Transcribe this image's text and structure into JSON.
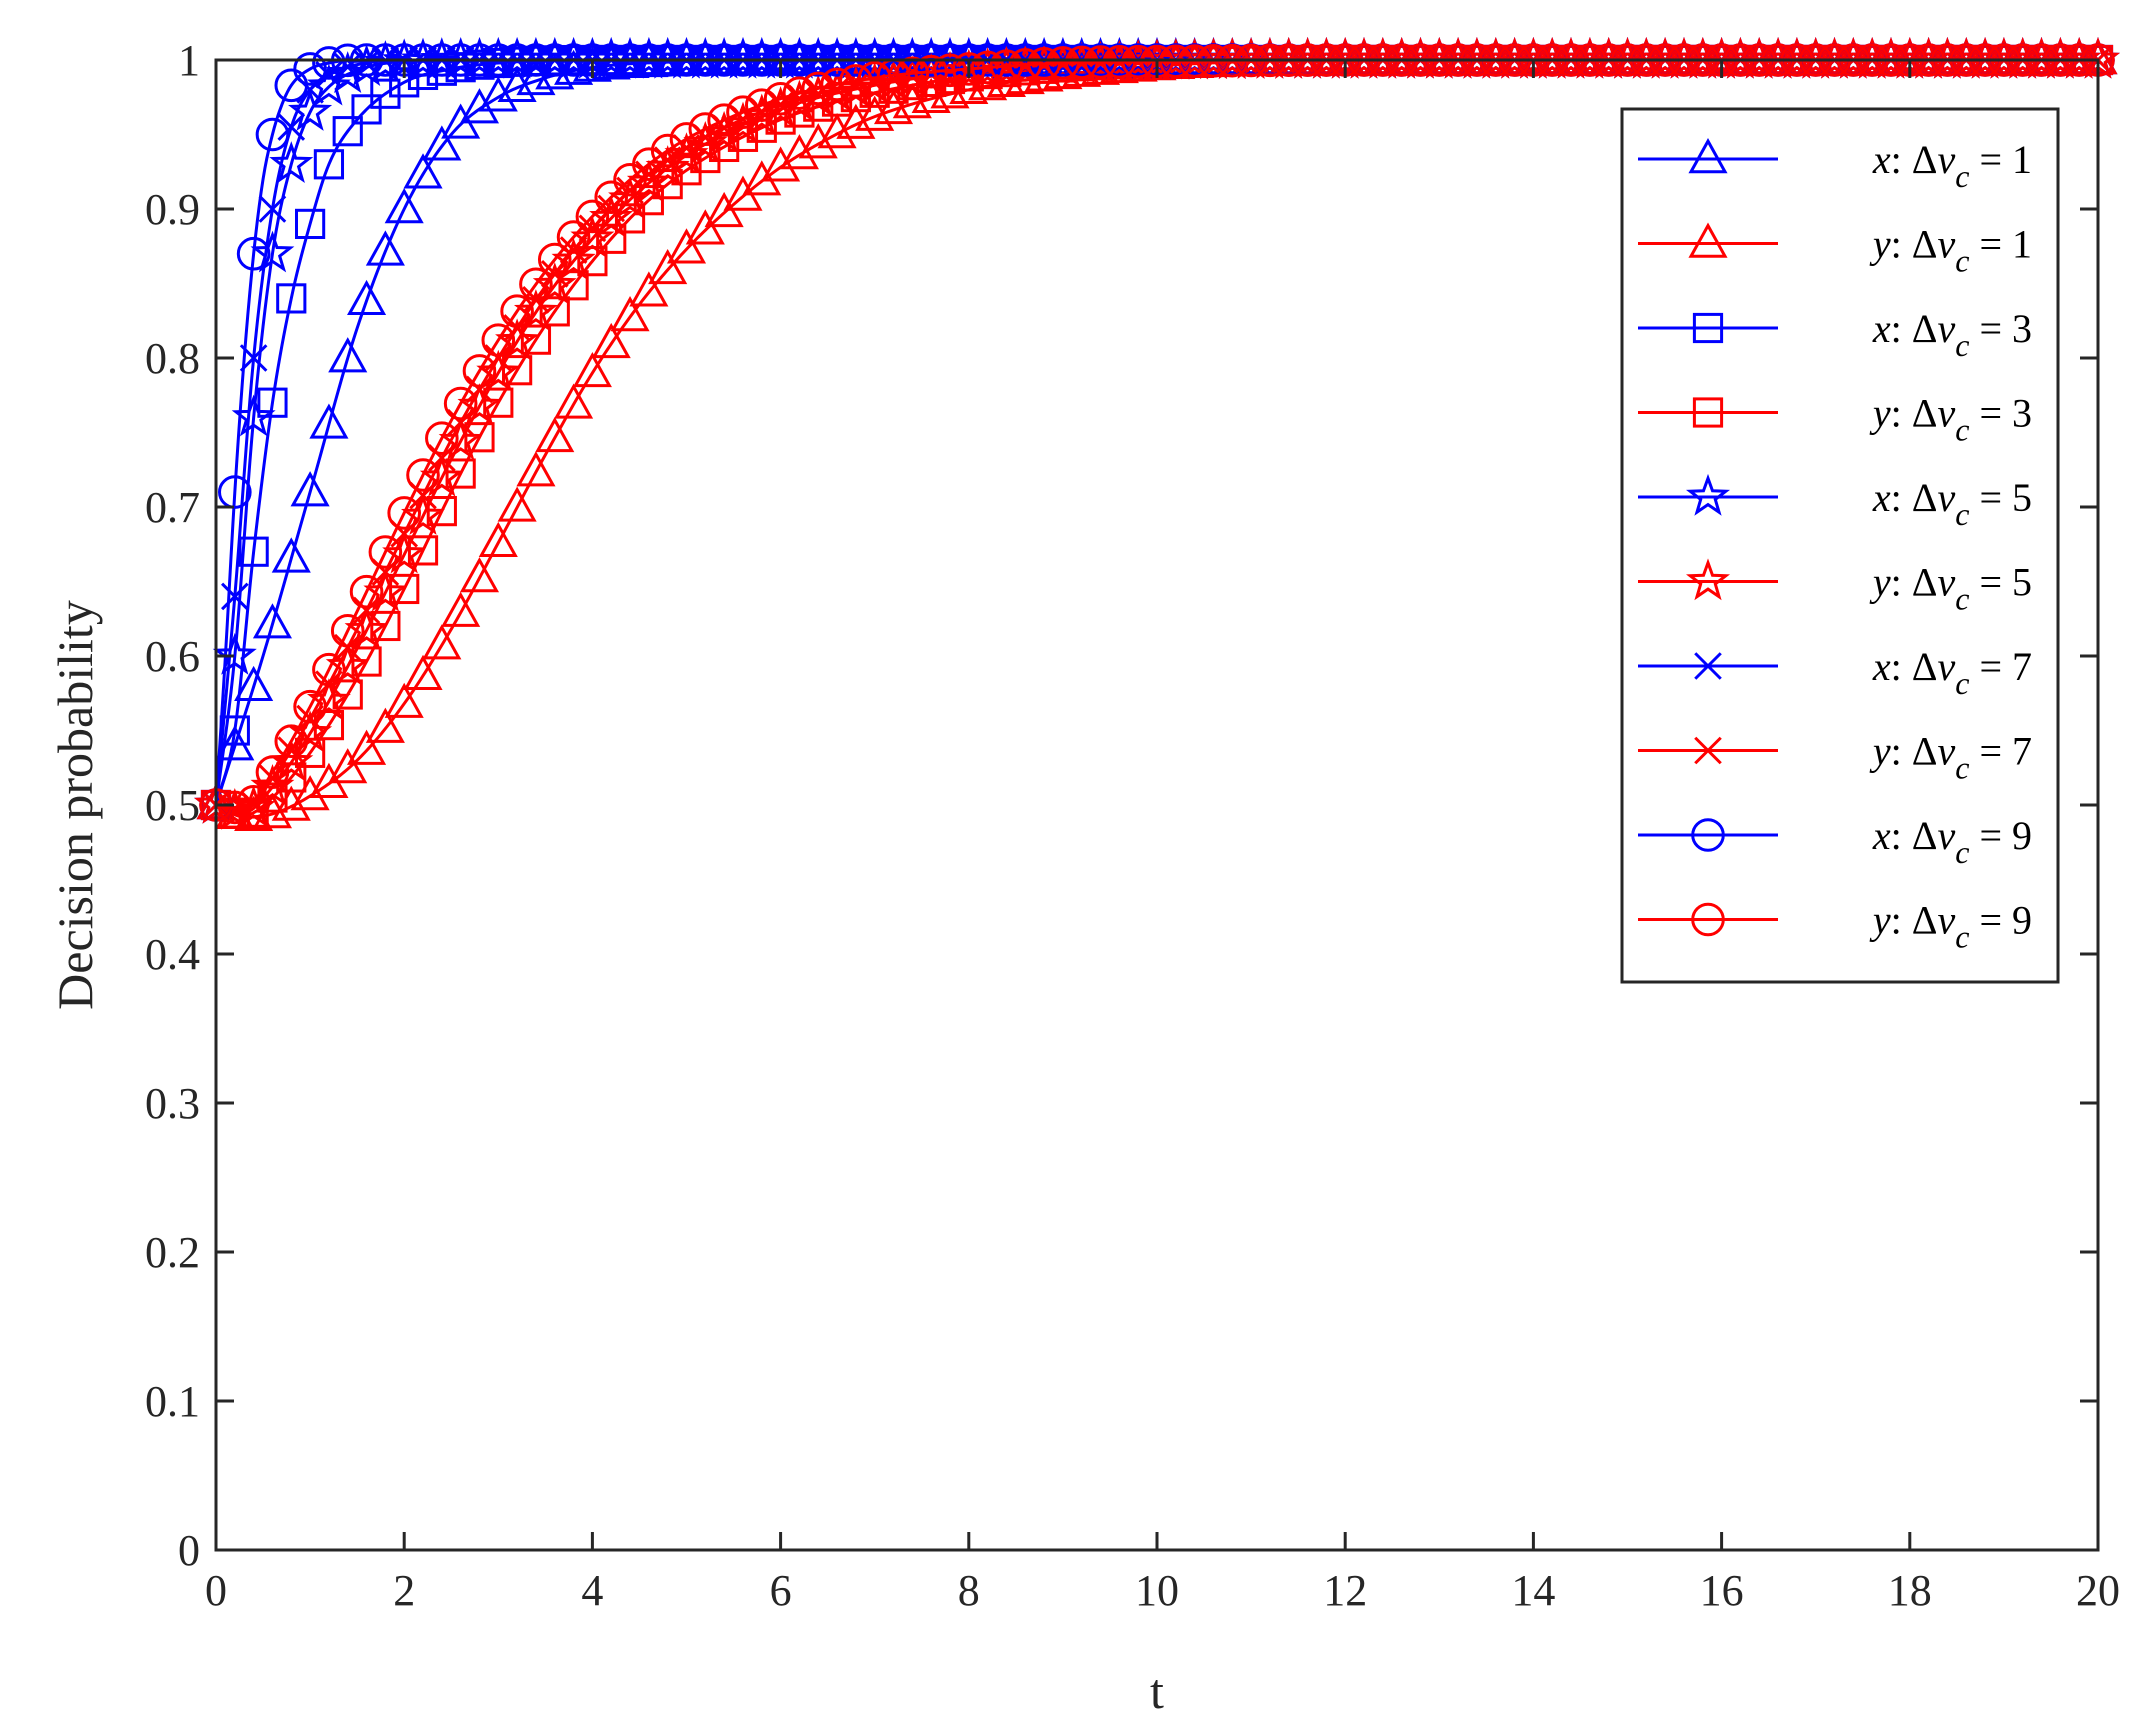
{
  "chart_data": {
    "type": "line",
    "title": "",
    "xlabel": "t",
    "ylabel": "Decision probability",
    "xlim": [
      0,
      20
    ],
    "ylim": [
      0,
      1
    ],
    "xticks": [
      0,
      2,
      4,
      6,
      8,
      10,
      12,
      14,
      16,
      18,
      20
    ],
    "xtick_labels": [
      "0",
      "2",
      "4",
      "6",
      "8",
      "10",
      "12",
      "14",
      "16",
      "18",
      "20"
    ],
    "yticks": [
      0,
      0.1,
      0.2,
      0.3,
      0.4,
      0.5,
      0.6,
      0.7,
      0.8,
      0.9,
      1
    ],
    "ytick_labels": [
      "0",
      "0.1",
      "0.2",
      "0.3",
      "0.4",
      "0.5",
      "0.6",
      "0.7",
      "0.8",
      "0.9",
      "1"
    ],
    "grid": false,
    "legend_position": "top-right",
    "marker_interval": 0.2,
    "series": [
      {
        "name": "x: Δv_c = 1",
        "var": "x",
        "dv": "1",
        "color": "#0000ff",
        "marker": "triangle",
        "t": [
          0,
          0.5,
          1,
          1.5,
          2,
          2.5,
          3,
          3.5,
          4,
          5,
          6,
          8,
          10,
          20
        ],
        "values": [
          0.5,
          0.6,
          0.71,
          0.82,
          0.9,
          0.95,
          0.975,
          0.988,
          0.995,
          0.999,
          1,
          1,
          1,
          1
        ]
      },
      {
        "name": "y: Δv_c = 1",
        "var": "y",
        "dv": "1",
        "color": "#ff0000",
        "marker": "triangle",
        "t": [
          0,
          0.3,
          0.6,
          1,
          1.5,
          2,
          2.5,
          3,
          3.5,
          4,
          4.5,
          5,
          5.5,
          6,
          6.5,
          7,
          8,
          9,
          10,
          11,
          12,
          14,
          16,
          20
        ],
        "values": [
          0.5,
          0.492,
          0.494,
          0.506,
          0.53,
          0.568,
          0.618,
          0.676,
          0.735,
          0.79,
          0.836,
          0.873,
          0.903,
          0.928,
          0.947,
          0.962,
          0.98,
          0.99,
          0.996,
          0.999,
          1,
          1,
          1,
          1
        ]
      },
      {
        "name": "x: Δv_c = 3",
        "var": "x",
        "dv": "3",
        "color": "#0000ff",
        "marker": "square",
        "t": [
          0,
          0.2,
          0.4,
          0.6,
          0.8,
          1,
          1.2,
          1.5,
          2,
          2.5,
          3,
          4,
          6,
          20
        ],
        "values": [
          0.5,
          0.55,
          0.67,
          0.77,
          0.84,
          0.89,
          0.93,
          0.96,
          0.985,
          0.994,
          0.998,
          1,
          1,
          1
        ]
      },
      {
        "name": "y: Δv_c = 3",
        "var": "y",
        "dv": "3",
        "color": "#ff0000",
        "marker": "square",
        "t": [
          0,
          0.3,
          0.6,
          1,
          1.5,
          2,
          2.5,
          3,
          3.5,
          4,
          4.5,
          5,
          6,
          7,
          8,
          9,
          10,
          12,
          20
        ],
        "values": [
          0.5,
          0.493,
          0.505,
          0.535,
          0.585,
          0.645,
          0.71,
          0.77,
          0.822,
          0.865,
          0.9,
          0.926,
          0.96,
          0.978,
          0.989,
          0.995,
          0.998,
          1,
          1
        ]
      },
      {
        "name": "x: Δv_c = 5",
        "var": "x",
        "dv": "5",
        "color": "#0000ff",
        "marker": "star",
        "t": [
          0,
          0.2,
          0.4,
          0.6,
          0.8,
          1,
          1.2,
          1.5,
          2,
          3,
          20
        ],
        "values": [
          0.5,
          0.6,
          0.76,
          0.87,
          0.93,
          0.965,
          0.982,
          0.993,
          0.999,
          1,
          1
        ]
      },
      {
        "name": "y: Δv_c = 5",
        "var": "y",
        "dv": "5",
        "color": "#ff0000",
        "marker": "star",
        "t": [
          0,
          0.3,
          0.6,
          1,
          1.5,
          2,
          2.5,
          3,
          3.5,
          4,
          4.5,
          5,
          6,
          7,
          8,
          9,
          10,
          12,
          20
        ],
        "values": [
          0.5,
          0.495,
          0.512,
          0.548,
          0.605,
          0.668,
          0.732,
          0.79,
          0.84,
          0.88,
          0.912,
          0.936,
          0.967,
          0.983,
          0.992,
          0.996,
          0.999,
          1,
          1
        ]
      },
      {
        "name": "x: Δv_c = 7",
        "var": "x",
        "dv": "7",
        "color": "#0000ff",
        "marker": "x",
        "t": [
          0,
          0.2,
          0.4,
          0.6,
          0.8,
          1,
          1.3,
          1.6,
          2,
          3,
          20
        ],
        "values": [
          0.5,
          0.64,
          0.8,
          0.9,
          0.955,
          0.98,
          0.993,
          0.998,
          1,
          1,
          1
        ]
      },
      {
        "name": "y: Δv_c = 7",
        "var": "y",
        "dv": "7",
        "color": "#ff0000",
        "marker": "x",
        "t": [
          0,
          0.3,
          0.6,
          1,
          1.5,
          2,
          2.5,
          3,
          3.5,
          4,
          4.5,
          5,
          6,
          7,
          8,
          9,
          10,
          12,
          20
        ],
        "values": [
          0.5,
          0.497,
          0.518,
          0.558,
          0.618,
          0.682,
          0.745,
          0.8,
          0.848,
          0.887,
          0.918,
          0.941,
          0.97,
          0.985,
          0.993,
          0.997,
          0.999,
          1,
          1
        ]
      },
      {
        "name": "x: Δv_c = 9",
        "var": "x",
        "dv": "9",
        "color": "#0000ff",
        "marker": "circle",
        "t": [
          0,
          0.1,
          0.2,
          0.3,
          0.4,
          0.5,
          0.6,
          0.7,
          0.8,
          1,
          1.2,
          1.5,
          2,
          20
        ],
        "values": [
          0.5,
          0.6,
          0.71,
          0.8,
          0.87,
          0.92,
          0.95,
          0.97,
          0.983,
          0.994,
          0.998,
          1,
          1,
          1
        ]
      },
      {
        "name": "y: Δv_c = 9",
        "var": "y",
        "dv": "9",
        "color": "#ff0000",
        "marker": "circle",
        "t": [
          0,
          0.3,
          0.6,
          1,
          1.5,
          2,
          2.5,
          3,
          3.5,
          4,
          4.5,
          5,
          6,
          7,
          8,
          9,
          10,
          12,
          20
        ],
        "values": [
          0.5,
          0.498,
          0.522,
          0.566,
          0.63,
          0.696,
          0.758,
          0.812,
          0.858,
          0.895,
          0.925,
          0.947,
          0.974,
          0.988,
          0.994,
          0.998,
          0.999,
          1,
          1
        ]
      }
    ]
  }
}
